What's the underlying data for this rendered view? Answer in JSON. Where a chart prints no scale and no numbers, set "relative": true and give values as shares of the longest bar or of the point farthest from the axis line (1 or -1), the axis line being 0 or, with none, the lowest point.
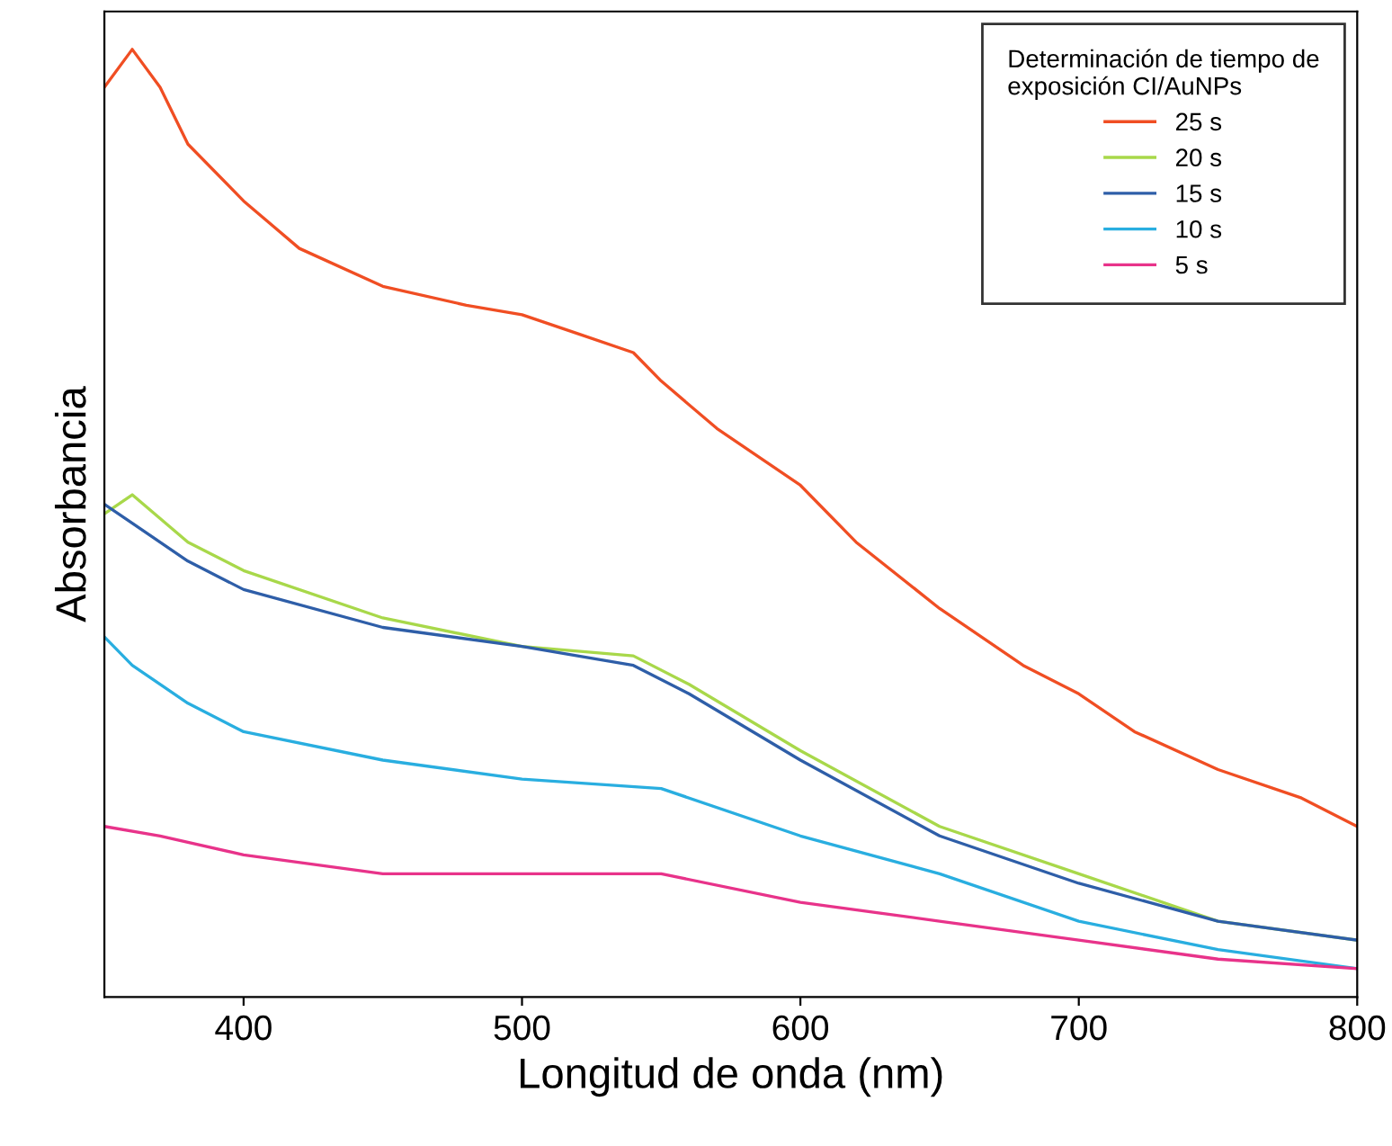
{
  "chart_data": {
    "type": "line",
    "xlabel": "Longitud de onda (nm)",
    "ylabel": "Absorbancia",
    "relative": true,
    "legend_title": "Determinación de tiempo de\nexposición CI/AuNPs",
    "legend": "top right",
    "xlim": [
      350,
      800
    ],
    "xticks": [
      400,
      500,
      600,
      700,
      800
    ],
    "grid": false,
    "tick_labels": "x",
    "series": [
      {
        "name": "25 s",
        "color": "#f04e23",
        "x": [
          350,
          360,
          370,
          380,
          400,
          420,
          450,
          480,
          500,
          520,
          540,
          550,
          570,
          600,
          620,
          650,
          680,
          700,
          720,
          750,
          780,
          800
        ],
        "values": [
          0.96,
          1.0,
          0.96,
          0.9,
          0.84,
          0.79,
          0.75,
          0.73,
          0.72,
          0.7,
          0.68,
          0.65,
          0.6,
          0.54,
          0.48,
          0.41,
          0.35,
          0.32,
          0.28,
          0.24,
          0.21,
          0.18
        ]
      },
      {
        "name": "20 s",
        "color": "#a8d84a",
        "x": [
          350,
          360,
          380,
          400,
          450,
          500,
          540,
          560,
          600,
          650,
          700,
          750,
          800
        ],
        "values": [
          0.51,
          0.53,
          0.48,
          0.45,
          0.4,
          0.37,
          0.36,
          0.33,
          0.26,
          0.18,
          0.13,
          0.08,
          0.06
        ]
      },
      {
        "name": "15 s",
        "color": "#2e5ea8",
        "x": [
          350,
          360,
          380,
          400,
          450,
          500,
          540,
          560,
          600,
          650,
          700,
          750,
          800
        ],
        "values": [
          0.52,
          0.5,
          0.46,
          0.43,
          0.39,
          0.37,
          0.35,
          0.32,
          0.25,
          0.17,
          0.12,
          0.08,
          0.06
        ]
      },
      {
        "name": "10 s",
        "color": "#29aee0",
        "x": [
          350,
          360,
          380,
          400,
          450,
          500,
          550,
          600,
          650,
          700,
          750,
          800
        ],
        "values": [
          0.38,
          0.35,
          0.31,
          0.28,
          0.25,
          0.23,
          0.22,
          0.17,
          0.13,
          0.08,
          0.05,
          0.03
        ]
      },
      {
        "name": "5 s",
        "color": "#e8338a",
        "x": [
          350,
          370,
          400,
          450,
          500,
          550,
          600,
          650,
          700,
          750,
          800
        ],
        "values": [
          0.18,
          0.17,
          0.15,
          0.13,
          0.13,
          0.13,
          0.1,
          0.08,
          0.06,
          0.04,
          0.03
        ]
      }
    ]
  }
}
